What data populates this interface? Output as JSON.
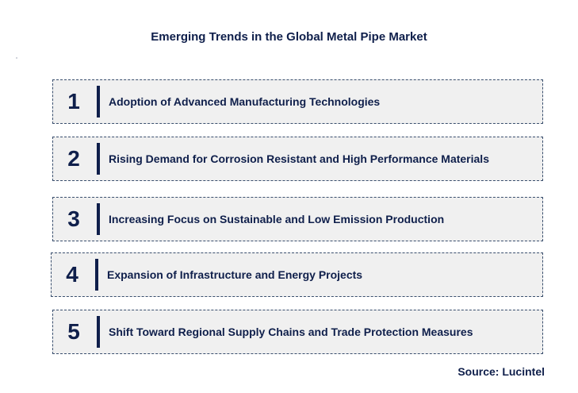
{
  "title": "Emerging Trends in the Global Metal Pipe Market",
  "trends": [
    {
      "number": "1",
      "label": "Adoption of Advanced Manufacturing Technologies"
    },
    {
      "number": "2",
      "label": "Rising Demand for Corrosion Resistant and High Performance Materials"
    },
    {
      "number": "3",
      "label": "Increasing Focus on Sustainable and Low Emission Production"
    },
    {
      "number": "4",
      "label": "Expansion of Infrastructure and Energy Projects"
    },
    {
      "number": "5",
      "label": "Shift Toward Regional Supply Chains and Trade Protection Measures"
    }
  ],
  "source": "Source: Lucintel"
}
